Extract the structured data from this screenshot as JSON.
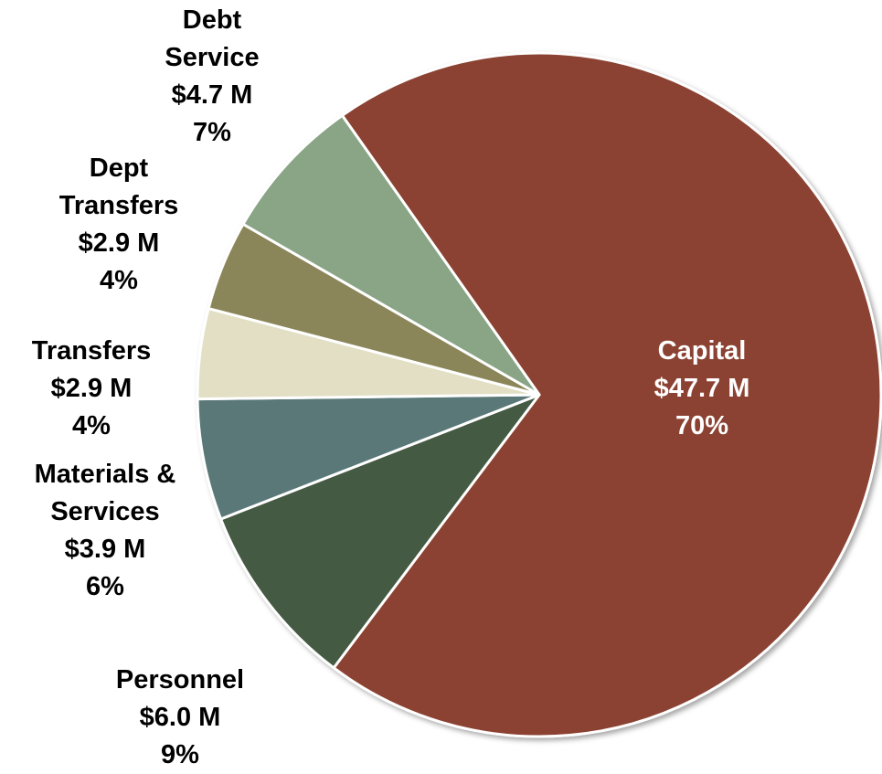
{
  "chart_data": {
    "type": "pie",
    "categories": [
      "Capital",
      "Personnel",
      "Materials & Services",
      "Transfers",
      "Dept Transfers",
      "Debt Service"
    ],
    "values": [
      47.7,
      6.0,
      3.9,
      2.9,
      2.9,
      4.7
    ],
    "value_labels": [
      "$47.7 M",
      "$6.0 M",
      "$3.9 M",
      "$2.9 M",
      "$2.9 M",
      "$4.7 M"
    ],
    "percents": [
      70,
      9,
      6,
      4,
      4,
      7
    ],
    "percent_labels": [
      "70%",
      "9%",
      "6%",
      "4%",
      "4%",
      "7%"
    ],
    "colors": [
      "#8b4232",
      "#445a42",
      "#5a7878",
      "#e2dfc5",
      "#8b865a",
      "#8aa486"
    ]
  }
}
